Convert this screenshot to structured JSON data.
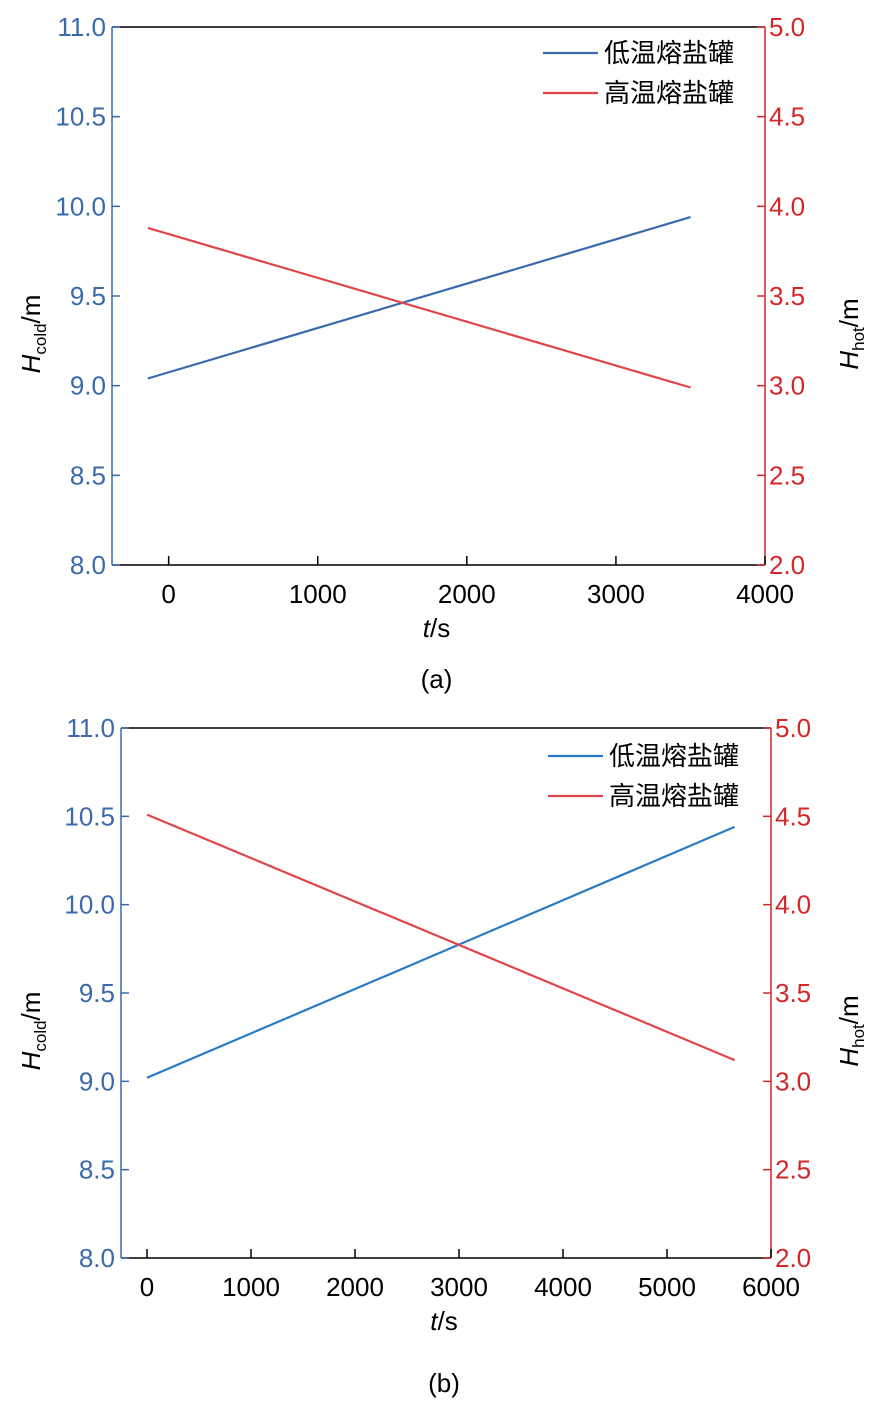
{
  "chart_data": [
    {
      "type": "line",
      "caption": "(a)",
      "xlabel_var": "t",
      "xlabel_unit": "/s",
      "ylabel_left_var": "H",
      "ylabel_left_sub": "cold",
      "ylabel_left_unit": "/m",
      "ylabel_right_var": "H",
      "ylabel_right_sub": "hot",
      "ylabel_right_unit": "/m",
      "xlim": [
        -380,
        4000
      ],
      "ylim_left": [
        8.0,
        11.0
      ],
      "ylim_right": [
        2.0,
        5.0
      ],
      "x_ticks": [
        0,
        1000,
        2000,
        3000,
        4000
      ],
      "x_tick_labels": [
        "0",
        "1000",
        "2000",
        "3000",
        "4000"
      ],
      "y_left_ticks": [
        8.0,
        8.5,
        9.0,
        9.5,
        10.0,
        10.5,
        11.0
      ],
      "y_left_tick_labels": [
        "8.0",
        "8.5",
        "9.0",
        "9.5",
        "10.0",
        "10.5",
        "11.0"
      ],
      "y_right_ticks": [
        2.0,
        2.5,
        3.0,
        3.5,
        4.0,
        4.5,
        5.0
      ],
      "y_right_tick_labels": [
        "2.0",
        "2.5",
        "3.0",
        "3.5",
        "4.0",
        "4.5",
        "5.0"
      ],
      "legend_position": "top-right",
      "colors": {
        "left_axis": "#3a6aab",
        "right_axis": "#d62728"
      },
      "series": [
        {
          "name": "低温熔盐罐",
          "axis": "left",
          "color": "#3a6aab",
          "x": [
            -140,
            3500
          ],
          "y": [
            9.04,
            9.94
          ]
        },
        {
          "name": "高温熔盐罐",
          "axis": "right",
          "color": "#e0454a",
          "x": [
            -140,
            3500
          ],
          "y": [
            3.88,
            2.99
          ]
        }
      ]
    },
    {
      "type": "line",
      "caption": "(b)",
      "xlabel_var": "t",
      "xlabel_unit": "/s",
      "ylabel_left_var": "H",
      "ylabel_left_sub": "cold",
      "ylabel_left_unit": "/m",
      "ylabel_right_var": "H",
      "ylabel_right_sub": "hot",
      "ylabel_right_unit": "/m",
      "xlim": [
        -250,
        6000
      ],
      "ylim_left": [
        8.0,
        11.0
      ],
      "ylim_right": [
        2.0,
        5.0
      ],
      "x_ticks": [
        0,
        1000,
        2000,
        3000,
        4000,
        5000,
        6000
      ],
      "x_tick_labels": [
        "0",
        "1000",
        "2000",
        "3000",
        "4000",
        "5000",
        "6000"
      ],
      "y_left_ticks": [
        8.0,
        8.5,
        9.0,
        9.5,
        10.0,
        10.5,
        11.0
      ],
      "y_left_tick_labels": [
        "8.0",
        "8.5",
        "9.0",
        "9.5",
        "10.0",
        "10.5",
        "11.0"
      ],
      "y_right_ticks": [
        2.0,
        2.5,
        3.0,
        3.5,
        4.0,
        4.5,
        5.0
      ],
      "y_right_tick_labels": [
        "2.0",
        "2.5",
        "3.0",
        "3.5",
        "4.0",
        "4.5",
        "5.0"
      ],
      "legend_position": "top-right",
      "colors": {
        "left_axis": "#3a6aab",
        "right_axis": "#d62728"
      },
      "series": [
        {
          "name": "低温熔盐罐",
          "axis": "left",
          "color": "#2a7bc4",
          "x": [
            0,
            5650
          ],
          "y": [
            9.02,
            10.44
          ]
        },
        {
          "name": "高温熔盐罐",
          "axis": "right",
          "color": "#e0454a",
          "x": [
            0,
            5650
          ],
          "y": [
            4.51,
            3.12
          ]
        }
      ]
    }
  ]
}
